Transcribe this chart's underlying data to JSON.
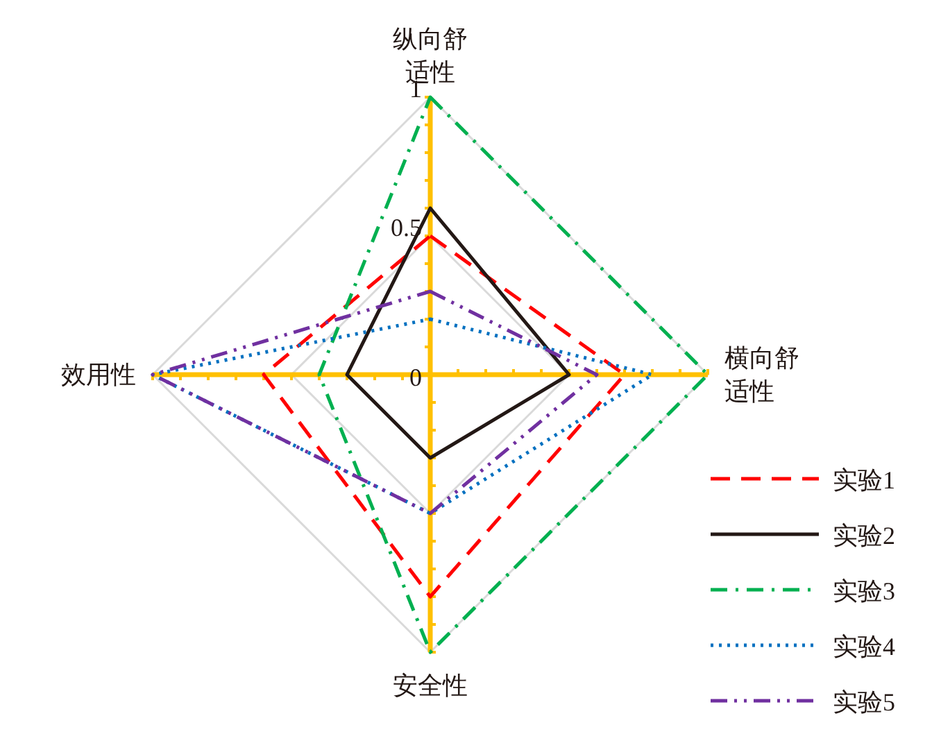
{
  "chart_data": {
    "type": "radar",
    "categories": [
      "纵向舒适性",
      "横向舒适性",
      "安全性",
      "效用性"
    ],
    "ylim": [
      0,
      1
    ],
    "yticks": [
      0,
      0.5,
      1
    ],
    "grid": true,
    "legend": "bottom right",
    "series": [
      {
        "name": "实验1",
        "color": "#ff0000",
        "line_style": "dashed",
        "values": [
          0.5,
          0.7,
          0.8,
          0.6
        ]
      },
      {
        "name": "实验2",
        "color": "#231815",
        "line_style": "solid",
        "values": [
          0.6,
          0.5,
          0.3,
          0.3
        ]
      },
      {
        "name": "实验3",
        "color": "#00b050",
        "line_style": "dashdot",
        "values": [
          1,
          1,
          1,
          0.4
        ]
      },
      {
        "name": "实验4",
        "color": "#0070c0",
        "line_style": "dotted",
        "values": [
          0.2,
          0.8,
          0.5,
          1
        ]
      },
      {
        "name": "实验5",
        "color": "#7030a0",
        "line_style": "dashdotdot",
        "values": [
          0.3,
          0.6,
          0.5,
          1
        ]
      }
    ]
  }
}
